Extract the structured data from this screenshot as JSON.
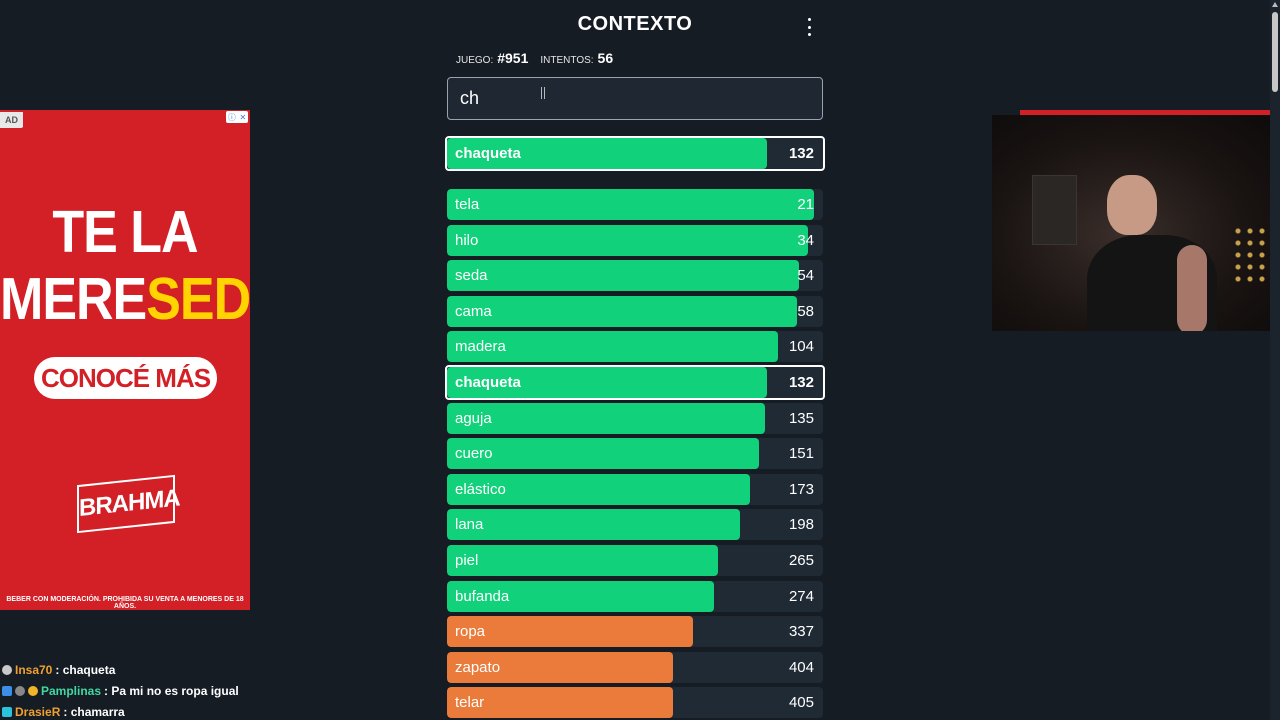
{
  "header": {
    "title": "CONTEXTO"
  },
  "stats": {
    "game_label": "JUEGO:",
    "game_value": "#951",
    "attempts_label": "INTENTOS:",
    "attempts_value": "56"
  },
  "search": {
    "value": "ch"
  },
  "last_guess": {
    "word": "chaqueta",
    "rank": "132",
    "level": 0.85,
    "color": "#12d17b"
  },
  "guesses": [
    {
      "word": "tela",
      "rank": "21",
      "level": 0.975,
      "color": "#12d17b",
      "highlight": false
    },
    {
      "word": "hilo",
      "rank": "34",
      "level": 0.96,
      "color": "#12d17b",
      "highlight": false
    },
    {
      "word": "seda",
      "rank": "54",
      "level": 0.935,
      "color": "#12d17b",
      "highlight": false
    },
    {
      "word": "cama",
      "rank": "58",
      "level": 0.93,
      "color": "#12d17b",
      "highlight": false
    },
    {
      "word": "madera",
      "rank": "104",
      "level": 0.88,
      "color": "#12d17b",
      "highlight": false
    },
    {
      "word": "chaqueta",
      "rank": "132",
      "level": 0.85,
      "color": "#12d17b",
      "highlight": true
    },
    {
      "word": "aguja",
      "rank": "135",
      "level": 0.845,
      "color": "#12d17b",
      "highlight": false
    },
    {
      "word": "cuero",
      "rank": "151",
      "level": 0.83,
      "color": "#12d17b",
      "highlight": false
    },
    {
      "word": "elástico",
      "rank": "173",
      "level": 0.805,
      "color": "#12d17b",
      "highlight": false
    },
    {
      "word": "lana",
      "rank": "198",
      "level": 0.78,
      "color": "#12d17b",
      "highlight": false
    },
    {
      "word": "piel",
      "rank": "265",
      "level": 0.72,
      "color": "#12d17b",
      "highlight": false
    },
    {
      "word": "bufanda",
      "rank": "274",
      "level": 0.71,
      "color": "#12d17b",
      "highlight": false
    },
    {
      "word": "ropa",
      "rank": "337",
      "level": 0.655,
      "color": "#ea7b3a",
      "highlight": false
    },
    {
      "word": "zapato",
      "rank": "404",
      "level": 0.6,
      "color": "#ea7b3a",
      "highlight": false
    },
    {
      "word": "telar",
      "rank": "405",
      "level": 0.6,
      "color": "#ea7b3a",
      "highlight": false
    }
  ],
  "ad": {
    "tag": "AD",
    "headline_line1": "TE LA",
    "headline_line2a": "MERE",
    "headline_line2b": "SED",
    "cta": "CONOCÉ MÁS",
    "brand": "BRAHMA",
    "legal": "BEBER CON MODERACIÓN. PROHIBIDA SU VENTA A MENORES DE 18 AÑOS.",
    "info_icon": "info-icon",
    "close_icon": "close-icon"
  },
  "chat": [
    {
      "user": "Insa70",
      "message": ": chaqueta",
      "user_color": "#f0a030"
    },
    {
      "user": "Pamplinas",
      "message": ": Pa mi no es ropa igual",
      "user_color": "#42d6a4"
    },
    {
      "user": "DrasieR",
      "message": ": chamarra",
      "user_color": "#f0a030"
    }
  ],
  "icons": {
    "menu": "more-vertical-icon"
  }
}
